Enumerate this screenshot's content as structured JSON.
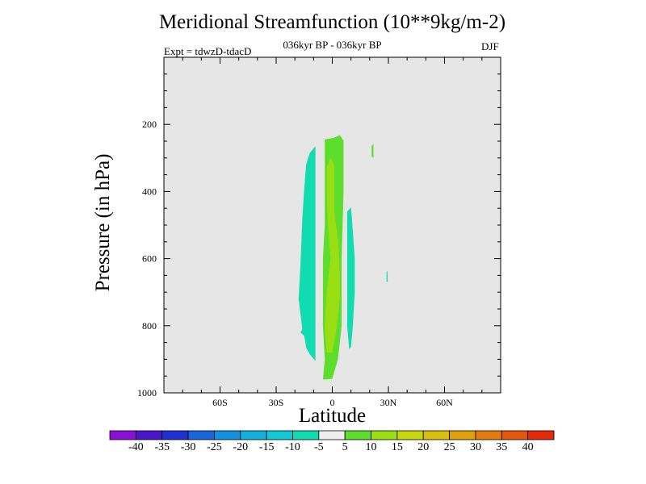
{
  "title": "Meridional Streamfunction (10**9kg/m-2)",
  "subtitle": "036kyr BP - 036kyr BP",
  "expt_label": "Expt = tdwzD-tdacD",
  "season": "DJF",
  "chart_data": {
    "type": "contour",
    "title": "Meridional Streamfunction (10**9kg/m-2)",
    "xlabel": "Latitude",
    "ylabel": "Pressure (in hPa)",
    "xlim": [
      -90,
      90
    ],
    "ylim": [
      1000,
      0
    ],
    "x_tick_values": [
      -60,
      -30,
      0,
      30,
      60
    ],
    "x_tick_labels": [
      "60S",
      "30S",
      "0",
      "30N",
      "60N"
    ],
    "y_tick_values": [
      200,
      400,
      600,
      800,
      1000
    ],
    "y_tick_labels": [
      "200",
      "400",
      "600",
      "800",
      "1000"
    ],
    "background_color": "#e6e6e6",
    "colorbar": {
      "labels": [
        "-40",
        "-35",
        "-30",
        "-25",
        "-20",
        "-15",
        "-10",
        "-5",
        "5",
        "10",
        "15",
        "20",
        "25",
        "30",
        "35",
        "40"
      ],
      "colors": [
        "#8a10d8",
        "#4c14cc",
        "#2030d4",
        "#1a64de",
        "#1490e0",
        "#12b0dc",
        "#12c8d4",
        "#10dcb0",
        "#eeeeee",
        "#5ede2c",
        "#9ade14",
        "#c6d80e",
        "#d8c00c",
        "#e0a00c",
        "#e47a0c",
        "#e4560c",
        "#e42a0a"
      ]
    },
    "regions": [
      {
        "level": "-10 to -5",
        "color": "#10dcb0",
        "polygon": [
          [
            -16,
            810
          ],
          [
            -18,
            720
          ],
          [
            -17,
            620
          ],
          [
            -16,
            480
          ],
          [
            -15,
            390
          ],
          [
            -14,
            320
          ],
          [
            -12,
            285
          ],
          [
            -9,
            265
          ],
          [
            -9,
            400
          ],
          [
            -9,
            600
          ],
          [
            -9,
            800
          ],
          [
            -9,
            905
          ],
          [
            -12,
            885
          ],
          [
            -14,
            865
          ],
          [
            -15,
            830
          ],
          [
            -17,
            820
          ]
        ]
      },
      {
        "level": "5 to 10",
        "color": "#5ede2c",
        "polygon": [
          [
            -5,
            960
          ],
          [
            -4,
            900
          ],
          [
            -5,
            800
          ],
          [
            -5,
            700
          ],
          [
            -5,
            600
          ],
          [
            -4,
            500
          ],
          [
            -4,
            400
          ],
          [
            -4,
            300
          ],
          [
            -4,
            245
          ],
          [
            1,
            240
          ],
          [
            4,
            232
          ],
          [
            6,
            248
          ],
          [
            6,
            400
          ],
          [
            5,
            600
          ],
          [
            5,
            800
          ],
          [
            3,
            900
          ],
          [
            0,
            958
          ],
          [
            -3,
            960
          ]
        ]
      },
      {
        "level": "10 to 15",
        "color": "#9ade14",
        "polygon": [
          [
            -3,
            880
          ],
          [
            -4,
            800
          ],
          [
            -3,
            700
          ],
          [
            -1,
            600
          ],
          [
            -2,
            520
          ],
          [
            -3,
            420
          ],
          [
            -3,
            330
          ],
          [
            -1,
            300
          ],
          [
            1,
            320
          ],
          [
            1,
            400
          ],
          [
            1,
            460
          ],
          [
            3,
            540
          ],
          [
            4,
            640
          ],
          [
            4,
            720
          ],
          [
            2,
            820
          ],
          [
            0,
            880
          ]
        ]
      },
      {
        "level": "-10 to -5",
        "color": "#10dcb0",
        "polygon": [
          [
            8,
            460
          ],
          [
            10,
            447
          ],
          [
            11,
            520
          ],
          [
            12,
            600
          ],
          [
            12,
            700
          ],
          [
            11,
            800
          ],
          [
            10,
            863
          ],
          [
            9,
            870
          ],
          [
            8,
            800
          ],
          [
            8,
            700
          ],
          [
            8,
            600
          ],
          [
            8,
            520
          ]
        ]
      },
      {
        "level": "5 to 10",
        "color": "#5ede2c",
        "polygon": [
          [
            21,
            265
          ],
          [
            22,
            258
          ],
          [
            22,
            300
          ],
          [
            21,
            295
          ]
        ]
      },
      {
        "level": "-10 to -5",
        "color": "#10dcb0",
        "polygon": [
          [
            29,
            640
          ],
          [
            29.5,
            636
          ],
          [
            29.6,
            670
          ],
          [
            29,
            668
          ]
        ]
      }
    ]
  }
}
